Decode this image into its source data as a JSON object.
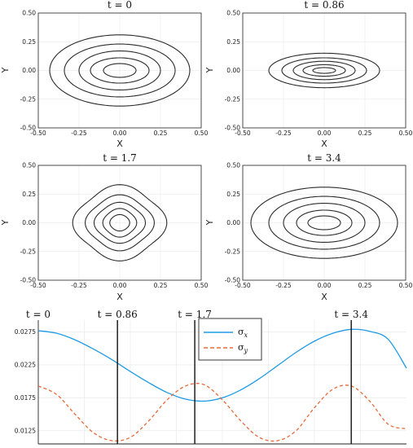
{
  "chart_data": [
    {
      "type": "contour",
      "title": "t = 0",
      "xlabel": "X",
      "ylabel": "Y",
      "xlim": [
        -0.5,
        0.5
      ],
      "ylim": [
        -0.5,
        0.5
      ],
      "xticks": [
        "-0.50",
        "-0.25",
        "0.00",
        "0.25",
        "0.50"
      ],
      "yticks": [
        "-0.50",
        "-0.25",
        "0.00",
        "0.25",
        "0.50"
      ],
      "grid": true,
      "contours": [
        {
          "rx": 0.43,
          "ry": 0.31,
          "shape": 0
        },
        {
          "rx": 0.34,
          "ry": 0.23,
          "shape": 0
        },
        {
          "rx": 0.25,
          "ry": 0.17,
          "shape": 0
        },
        {
          "rx": 0.18,
          "ry": 0.11,
          "shape": 0
        },
        {
          "rx": 0.1,
          "ry": 0.06,
          "shape": 0
        }
      ]
    },
    {
      "type": "contour",
      "title": "t = 0.86",
      "xlabel": "X",
      "ylabel": "Y",
      "xlim": [
        -0.5,
        0.5
      ],
      "ylim": [
        -0.5,
        0.5
      ],
      "xticks": [
        "-0.50",
        "-0.25",
        "0.00",
        "0.25",
        "0.50"
      ],
      "yticks": [
        "-0.50",
        "-0.25",
        "0.00",
        "0.25",
        "0.50"
      ],
      "grid": true,
      "contours": [
        {
          "rx": 0.34,
          "ry": 0.15,
          "shape": 0
        },
        {
          "rx": 0.26,
          "ry": 0.11,
          "shape": 0
        },
        {
          "rx": 0.19,
          "ry": 0.08,
          "shape": 0
        },
        {
          "rx": 0.13,
          "ry": 0.05,
          "shape": 0
        },
        {
          "rx": 0.07,
          "ry": 0.025,
          "shape": 0
        }
      ]
    },
    {
      "type": "contour",
      "title": "t = 1.7",
      "xlabel": "X",
      "ylabel": "Y",
      "xlim": [
        -0.5,
        0.5
      ],
      "ylim": [
        -0.5,
        0.5
      ],
      "xticks": [
        "-0.50",
        "-0.25",
        "0.00",
        "0.25",
        "0.50"
      ],
      "yticks": [
        "-0.50",
        "-0.25",
        "0.00",
        "0.25",
        "0.50"
      ],
      "grid": true,
      "contours": [
        {
          "rx": 0.27,
          "ry": 0.31,
          "shape": 0.07
        },
        {
          "rx": 0.2,
          "ry": 0.23,
          "shape": 0.06
        },
        {
          "rx": 0.15,
          "ry": 0.17,
          "shape": 0.05
        },
        {
          "rx": 0.1,
          "ry": 0.12,
          "shape": 0.04
        },
        {
          "rx": 0.06,
          "ry": 0.07,
          "shape": 0.02
        }
      ]
    },
    {
      "type": "contour",
      "title": "t = 3.4",
      "xlabel": "X",
      "ylabel": "Y",
      "xlim": [
        -0.5,
        0.5
      ],
      "ylim": [
        -0.5,
        0.5
      ],
      "xticks": [
        "-0.50",
        "-0.25",
        "0.00",
        "0.25",
        "0.50"
      ],
      "yticks": [
        "-0.50",
        "-0.25",
        "0.00",
        "0.25",
        "0.50"
      ],
      "grid": true,
      "contours": [
        {
          "rx": 0.45,
          "ry": 0.31,
          "shape": 0
        },
        {
          "rx": 0.34,
          "ry": 0.23,
          "shape": 0
        },
        {
          "rx": 0.25,
          "ry": 0.17,
          "shape": 0
        },
        {
          "rx": 0.17,
          "ry": 0.11,
          "shape": 0
        },
        {
          "rx": 0.1,
          "ry": 0.06,
          "shape": 0
        }
      ]
    },
    {
      "type": "line",
      "xlim": [
        0,
        4.0
      ],
      "ylim": [
        0.0105,
        0.0293
      ],
      "yticks": [
        "0.0125",
        "0.0175",
        "0.0225",
        "0.0275"
      ],
      "ytick_values": [
        0.0125,
        0.0175,
        0.0225,
        0.0275
      ],
      "grid": true,
      "legend": "top-center",
      "series": [
        {
          "name": "σ_x",
          "style": "solid",
          "color": "#1f9be6",
          "x": [
            0,
            0.2,
            0.4,
            0.6,
            0.8,
            1.0,
            1.2,
            1.4,
            1.6,
            1.8,
            2.0,
            2.2,
            2.4,
            2.6,
            2.8,
            3.0,
            3.2,
            3.4,
            3.6,
            3.8,
            4.0
          ],
          "y": [
            0.0277,
            0.0273,
            0.0263,
            0.0249,
            0.0233,
            0.0215,
            0.0198,
            0.0183,
            0.0173,
            0.017,
            0.0175,
            0.0187,
            0.0204,
            0.0224,
            0.0244,
            0.0261,
            0.0273,
            0.0279,
            0.0276,
            0.0264,
            0.022
          ]
        },
        {
          "name": "σ_y",
          "style": "dashed",
          "color": "#e8683a",
          "x": [
            0,
            0.2,
            0.4,
            0.6,
            0.8,
            1.0,
            1.2,
            1.4,
            1.6,
            1.8,
            2.0,
            2.2,
            2.4,
            2.6,
            2.8,
            3.0,
            3.2,
            3.4,
            3.6,
            3.8,
            4.0
          ],
          "y": [
            0.0193,
            0.018,
            0.015,
            0.0122,
            0.011,
            0.0115,
            0.014,
            0.0172,
            0.0193,
            0.0195,
            0.0172,
            0.014,
            0.0115,
            0.011,
            0.0125,
            0.016,
            0.0188,
            0.0193,
            0.017,
            0.0135,
            0.0128
          ]
        }
      ],
      "annotations": [
        {
          "label": "t = 0",
          "x": 0
        },
        {
          "label": "t = 0.86",
          "x": 0.86
        },
        {
          "label": "t = 1.7",
          "x": 1.7
        },
        {
          "label": "t = 3.4",
          "x": 3.4
        }
      ]
    }
  ]
}
